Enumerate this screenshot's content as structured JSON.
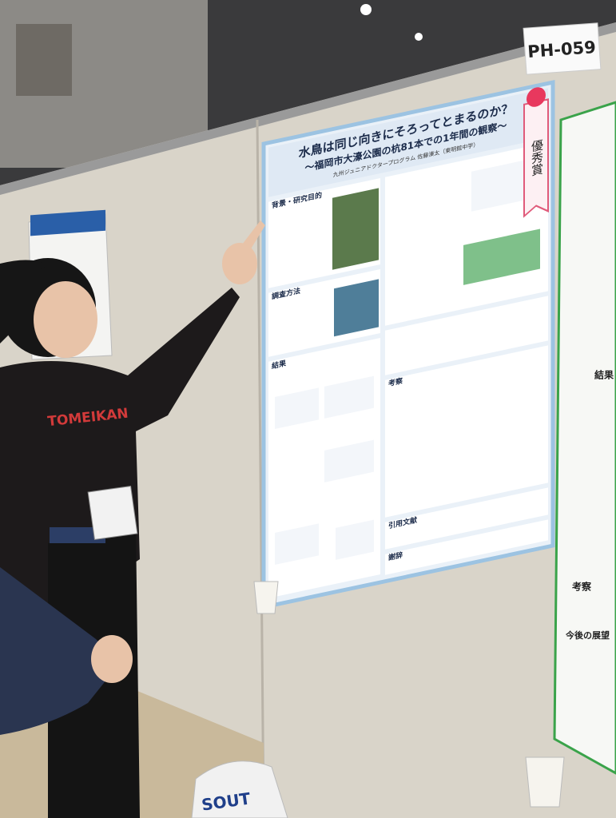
{
  "booth_label": "PH-059",
  "poster": {
    "title": "水鳥は同じ向きにそろってとまるのか？",
    "subtitle": "～福岡市大濠公園の杭81本での1年間の観察～",
    "author": "九州ジュニアドクタープログラム 佐藤湊太（東明館中学）",
    "award": "優秀賞",
    "sections": [
      "背景・研究目的",
      "調査方法",
      "結果",
      "考察",
      "引用文献",
      "謝辞"
    ]
  },
  "neighbor_poster": {
    "sections": [
      "結果",
      "考察",
      "今後の展望"
    ]
  },
  "shirt_text": "TOMEIKAN",
  "bag_text": "SOUT"
}
